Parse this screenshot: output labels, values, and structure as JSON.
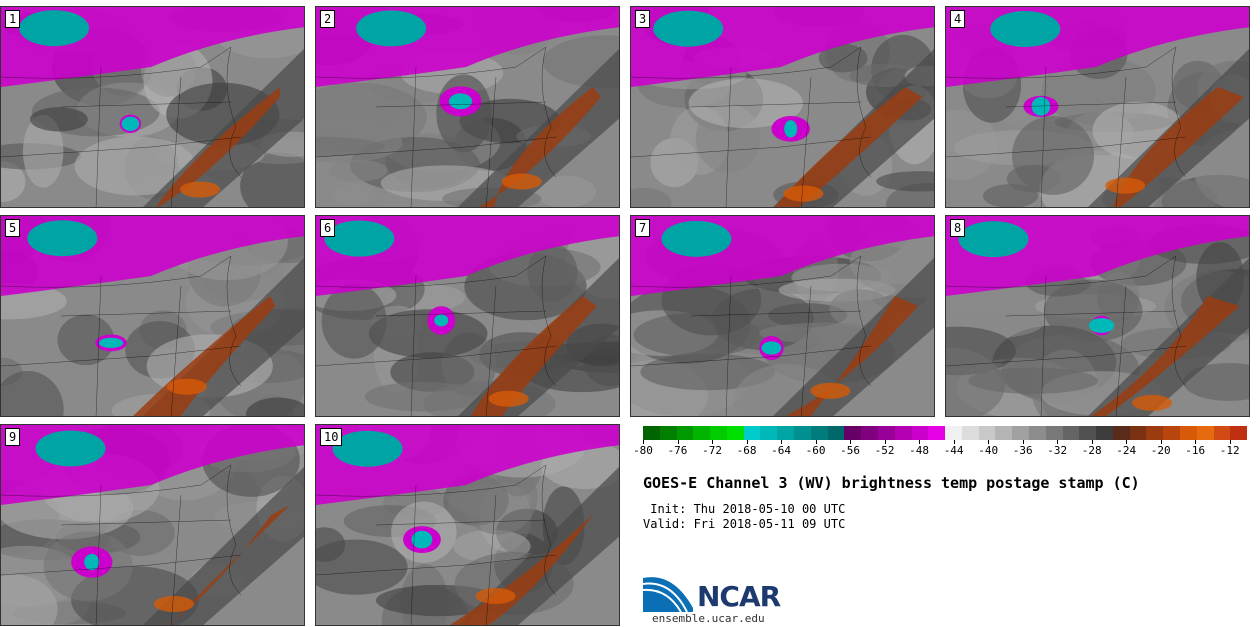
{
  "title": "GOES-E Channel 3 (WV) brightness temp postage stamp (C)",
  "init": " Init: Thu 2018-05-10 00 UTC",
  "valid": "Valid: Fri 2018-05-11 09 UTC",
  "panels": [
    {
      "label": "1"
    },
    {
      "label": "2"
    },
    {
      "label": "3"
    },
    {
      "label": "4"
    },
    {
      "label": "5"
    },
    {
      "label": "6"
    },
    {
      "label": "7"
    },
    {
      "label": "8"
    },
    {
      "label": "9"
    },
    {
      "label": "10"
    }
  ],
  "colorbar": {
    "min": -80,
    "max": -10,
    "step": 2,
    "ticks": [
      "-80",
      "-76",
      "-72",
      "-68",
      "-64",
      "-60",
      "-56",
      "-52",
      "-48",
      "-44",
      "-40",
      "-36",
      "-32",
      "-28",
      "-24",
      "-20",
      "-16",
      "-12"
    ],
    "colors": [
      "#006400",
      "#007f00",
      "#009a00",
      "#00b400",
      "#00cc00",
      "#00e000",
      "#00cccc",
      "#00b8b8",
      "#00a4a4",
      "#009090",
      "#007c7c",
      "#006868",
      "#660066",
      "#800080",
      "#990099",
      "#b300b3",
      "#cc00cc",
      "#e600e6",
      "#f0f0f0",
      "#dcdcdc",
      "#c8c8c8",
      "#b4b4b4",
      "#a0a0a0",
      "#8c8c8c",
      "#787878",
      "#646464",
      "#505050",
      "#3c3c3c",
      "#5a2a1a",
      "#7a3212",
      "#9a3c0f",
      "#b8460c",
      "#d65a08",
      "#e66a10",
      "#d24a14",
      "#c03010"
    ]
  },
  "logo": {
    "text": "NCAR",
    "url": "ensemble.ucar.edu"
  }
}
